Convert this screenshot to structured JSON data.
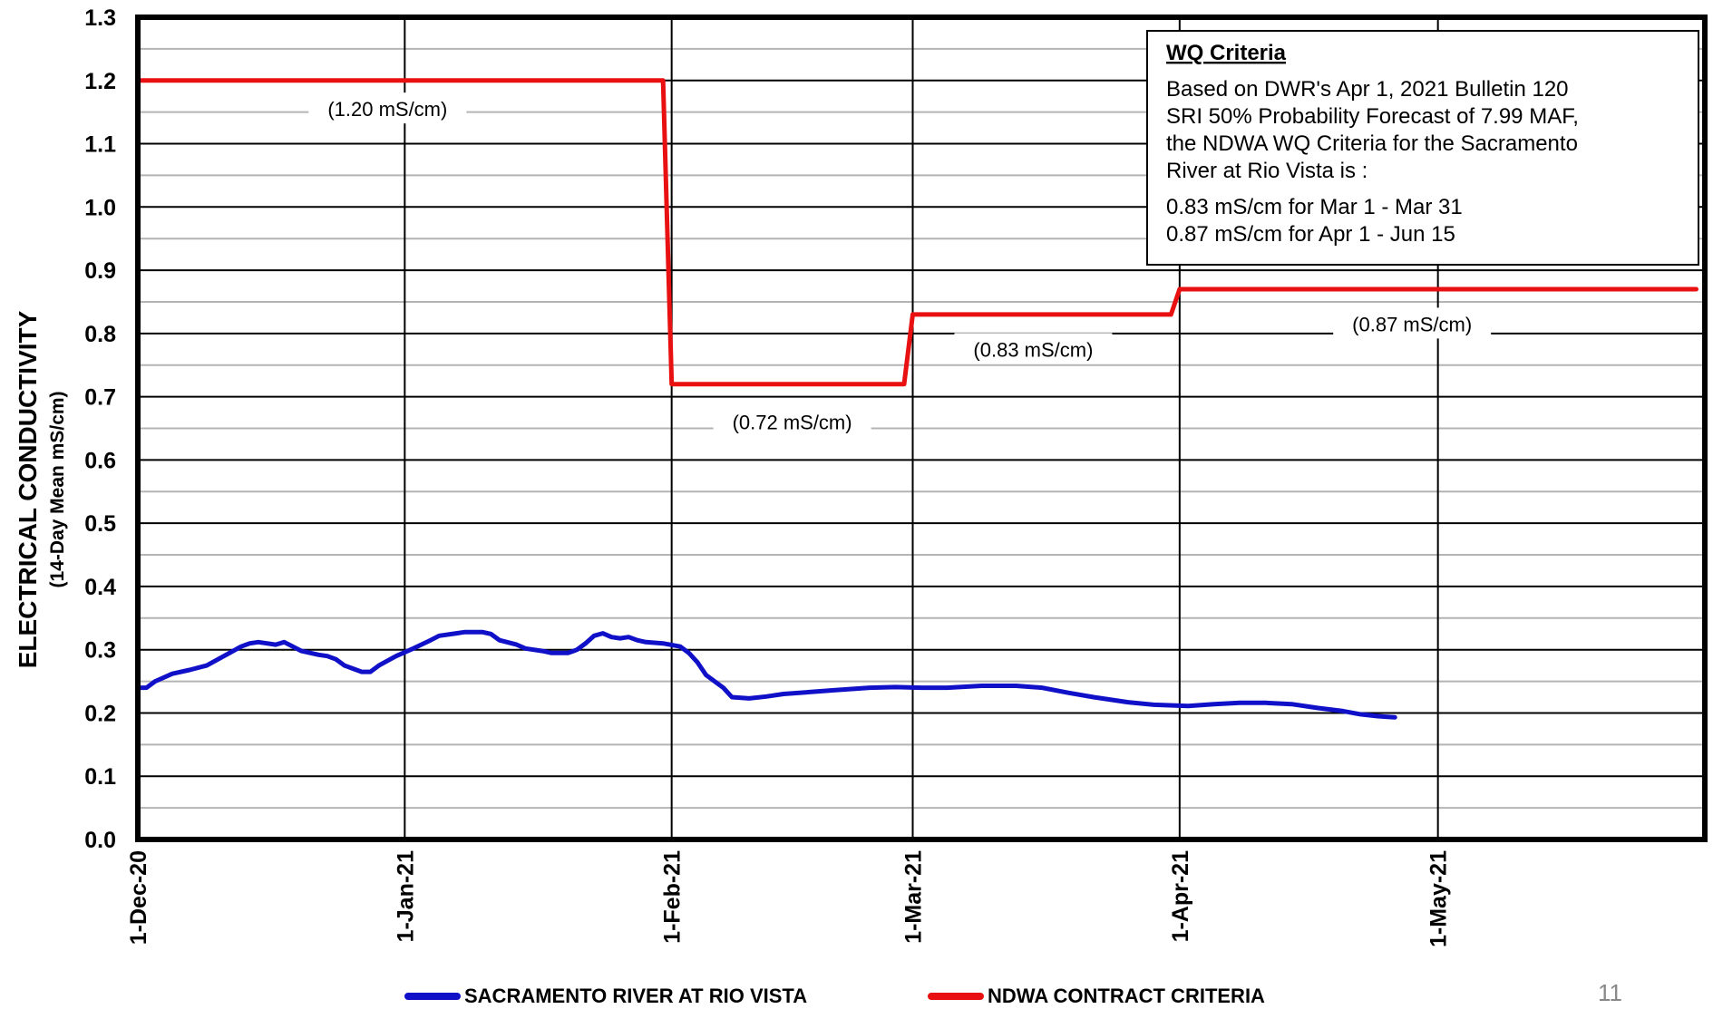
{
  "chart_data": {
    "type": "line",
    "ylabel": "ELECTRICAL CONDUCTIVITY",
    "ylabel_sub": "(14-Day Mean mS/cm)",
    "ylim": [
      0,
      1.3
    ],
    "yticks": [
      "0.0",
      "0.1",
      "0.2",
      "0.3",
      "0.4",
      "0.5",
      "0.6",
      "0.7",
      "0.8",
      "0.9",
      "1.0",
      "1.1",
      "1.2",
      "1.3"
    ],
    "xlim": [
      "2020-12-01",
      "2021-05-31"
    ],
    "xticks": [
      {
        "date": "2020-12-01",
        "label": "1-Dec-20"
      },
      {
        "date": "2021-01-01",
        "label": "1-Jan-21"
      },
      {
        "date": "2021-02-01",
        "label": "1-Feb-21"
      },
      {
        "date": "2021-03-01",
        "label": "1-Mar-21"
      },
      {
        "date": "2021-04-01",
        "label": "1-Apr-21"
      },
      {
        "date": "2021-05-01",
        "label": "1-May-21"
      }
    ],
    "grid": true,
    "legend_position": "bottom",
    "series": [
      {
        "name": "SACRAMENTO RIVER AT RIO VISTA",
        "color": "#1010c8",
        "points": [
          [
            "2020-12-01",
            0.24
          ],
          [
            "2020-12-02",
            0.24
          ],
          [
            "2020-12-03",
            0.25
          ],
          [
            "2020-12-05",
            0.262
          ],
          [
            "2020-12-07",
            0.268
          ],
          [
            "2020-12-09",
            0.275
          ],
          [
            "2020-12-11",
            0.29
          ],
          [
            "2020-12-13",
            0.305
          ],
          [
            "2020-12-14",
            0.31
          ],
          [
            "2020-12-15",
            0.312
          ],
          [
            "2020-12-16",
            0.31
          ],
          [
            "2020-12-17",
            0.308
          ],
          [
            "2020-12-18",
            0.312
          ],
          [
            "2020-12-19",
            0.305
          ],
          [
            "2020-12-20",
            0.298
          ],
          [
            "2020-12-22",
            0.292
          ],
          [
            "2020-12-23",
            0.29
          ],
          [
            "2020-12-24",
            0.285
          ],
          [
            "2020-12-25",
            0.275
          ],
          [
            "2020-12-26",
            0.27
          ],
          [
            "2020-12-27",
            0.265
          ],
          [
            "2020-12-28",
            0.265
          ],
          [
            "2020-12-29",
            0.275
          ],
          [
            "2020-12-31",
            0.29
          ],
          [
            "2021-01-02",
            0.302
          ],
          [
            "2021-01-04",
            0.315
          ],
          [
            "2021-01-05",
            0.322
          ],
          [
            "2021-01-07",
            0.326
          ],
          [
            "2021-01-08",
            0.328
          ],
          [
            "2021-01-10",
            0.328
          ],
          [
            "2021-01-11",
            0.325
          ],
          [
            "2021-01-12",
            0.315
          ],
          [
            "2021-01-14",
            0.308
          ],
          [
            "2021-01-15",
            0.302
          ],
          [
            "2021-01-17",
            0.298
          ],
          [
            "2021-01-18",
            0.295
          ],
          [
            "2021-01-20",
            0.295
          ],
          [
            "2021-01-21",
            0.3
          ],
          [
            "2021-01-22",
            0.31
          ],
          [
            "2021-01-23",
            0.322
          ],
          [
            "2021-01-24",
            0.326
          ],
          [
            "2021-01-25",
            0.32
          ],
          [
            "2021-01-26",
            0.318
          ],
          [
            "2021-01-27",
            0.32
          ],
          [
            "2021-01-28",
            0.315
          ],
          [
            "2021-01-29",
            0.312
          ],
          [
            "2021-01-31",
            0.31
          ],
          [
            "2021-02-02",
            0.305
          ],
          [
            "2021-02-03",
            0.295
          ],
          [
            "2021-02-04",
            0.28
          ],
          [
            "2021-02-05",
            0.26
          ],
          [
            "2021-02-07",
            0.24
          ],
          [
            "2021-02-08",
            0.225
          ],
          [
            "2021-02-10",
            0.223
          ],
          [
            "2021-02-12",
            0.226
          ],
          [
            "2021-02-14",
            0.23
          ],
          [
            "2021-02-17",
            0.233
          ],
          [
            "2021-02-20",
            0.236
          ],
          [
            "2021-02-24",
            0.24
          ],
          [
            "2021-02-27",
            0.241
          ],
          [
            "2021-03-02",
            0.24
          ],
          [
            "2021-03-05",
            0.24
          ],
          [
            "2021-03-09",
            0.243
          ],
          [
            "2021-03-13",
            0.243
          ],
          [
            "2021-03-16",
            0.24
          ],
          [
            "2021-03-19",
            0.232
          ],
          [
            "2021-03-22",
            0.225
          ],
          [
            "2021-03-26",
            0.217
          ],
          [
            "2021-03-29",
            0.213
          ],
          [
            "2021-04-02",
            0.211
          ],
          [
            "2021-04-05",
            0.214
          ],
          [
            "2021-04-08",
            0.216
          ],
          [
            "2021-04-11",
            0.216
          ],
          [
            "2021-04-14",
            0.214
          ],
          [
            "2021-04-17",
            0.208
          ],
          [
            "2021-04-20",
            0.203
          ],
          [
            "2021-04-22",
            0.198
          ],
          [
            "2021-04-24",
            0.195
          ],
          [
            "2021-04-26",
            0.193
          ]
        ]
      },
      {
        "name": "NDWA CONTRACT CRITERIA",
        "color": "#e81010",
        "points": [
          [
            "2020-12-01",
            1.2
          ],
          [
            "2021-01-31",
            1.2
          ],
          [
            "2021-02-01",
            0.72
          ],
          [
            "2021-02-28",
            0.72
          ],
          [
            "2021-03-01",
            0.83
          ],
          [
            "2021-03-31",
            0.83
          ],
          [
            "2021-04-01",
            0.87
          ],
          [
            "2021-05-31",
            0.87
          ]
        ]
      }
    ],
    "annotations": [
      {
        "text": "(1.20 mS/cm)",
        "date": "2020-12-30",
        "y": 1.155
      },
      {
        "text": "(0.72 mS/cm)",
        "date": "2021-02-15",
        "y": 0.66
      },
      {
        "text": "(0.83 mS/cm)",
        "date": "2021-03-15",
        "y": 0.775
      },
      {
        "text": "(0.87 mS/cm)",
        "date": "2021-04-28",
        "y": 0.815
      }
    ],
    "criteria_box": {
      "heading": "WQ Criteria",
      "lines": [
        "Based on DWR's Apr 1, 2021 Bulletin 120",
        "SRI 50% Probability Forecast of 7.99 MAF,",
        "the NDWA WQ Criteria for the Sacramento",
        "River at Rio Vista is :",
        "0.83 mS/cm for Mar 1 - Mar 31",
        "0.87 mS/cm for Apr 1 - Jun 15"
      ]
    }
  },
  "page_number": "11"
}
